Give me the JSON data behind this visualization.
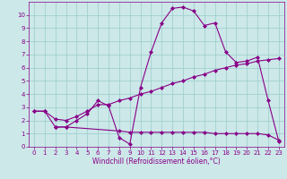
{
  "xlabel": "Windchill (Refroidissement éolien,°C)",
  "bg_color": "#cce8e8",
  "line_color": "#880088",
  "xlim": [
    -0.5,
    23.5
  ],
  "ylim": [
    0,
    11
  ],
  "xticks": [
    0,
    1,
    2,
    3,
    4,
    5,
    6,
    7,
    8,
    9,
    10,
    11,
    12,
    13,
    14,
    15,
    16,
    17,
    18,
    19,
    20,
    21,
    22,
    23
  ],
  "yticks": [
    0,
    1,
    2,
    3,
    4,
    5,
    6,
    7,
    8,
    9,
    10
  ],
  "curve1_x": [
    0,
    1,
    2,
    3,
    4,
    5,
    6,
    7,
    8,
    9,
    10,
    11,
    12,
    13,
    14,
    15,
    16,
    17,
    18,
    19,
    20,
    21,
    22,
    23
  ],
  "curve1_y": [
    2.7,
    2.7,
    1.5,
    1.5,
    2.0,
    2.5,
    3.5,
    3.1,
    0.7,
    0.2,
    4.5,
    7.2,
    9.4,
    10.5,
    10.6,
    10.3,
    9.2,
    9.4,
    7.2,
    6.4,
    6.5,
    6.8,
    3.5,
    0.4
  ],
  "curve2_x": [
    0,
    1,
    2,
    3,
    4,
    5,
    6,
    7,
    8,
    9,
    10,
    11,
    12,
    13,
    14,
    15,
    16,
    17,
    18,
    19,
    20,
    21,
    22,
    23
  ],
  "curve2_y": [
    2.7,
    2.7,
    2.1,
    2.0,
    2.3,
    2.7,
    3.2,
    3.2,
    3.5,
    3.7,
    4.0,
    4.2,
    4.5,
    4.8,
    5.0,
    5.3,
    5.5,
    5.8,
    6.0,
    6.2,
    6.3,
    6.5,
    6.6,
    6.7
  ],
  "curve3_x": [
    2,
    3,
    8,
    9,
    10,
    11,
    12,
    13,
    14,
    15,
    16,
    17,
    18,
    19,
    20,
    21,
    22,
    23
  ],
  "curve3_y": [
    1.5,
    1.5,
    1.2,
    1.1,
    1.1,
    1.1,
    1.1,
    1.1,
    1.1,
    1.1,
    1.1,
    1.0,
    1.0,
    1.0,
    1.0,
    1.0,
    0.9,
    0.5
  ],
  "grid_color": "#99cccc",
  "marker": "D",
  "markersize": 2.0,
  "linewidth": 0.8,
  "tick_fontsize": 5.0,
  "xlabel_fontsize": 5.5
}
